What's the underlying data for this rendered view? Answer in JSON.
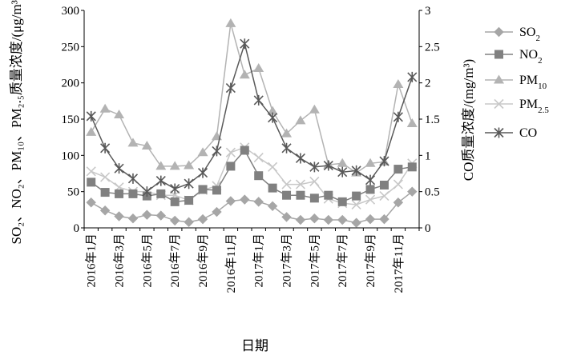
{
  "chart_data": {
    "type": "line",
    "title": "",
    "xlabel": "日期",
    "ylabel_left": "SO₂、NO₂、PM₁₀、PM₂.₅质量浓度/(μg/m³)",
    "ylabel_right": "CO质量浓度/(mg/m³)",
    "ylim_left": [
      0,
      300
    ],
    "ylim_right": [
      0,
      3
    ],
    "yticks_left": [
      "0",
      "50",
      "100",
      "150",
      "200",
      "250",
      "300"
    ],
    "yticks_right": [
      "0",
      "0.5",
      "1",
      "1.5",
      "2",
      "2.5",
      "3"
    ],
    "categories": [
      "2016-01",
      "2016-02",
      "2016-03",
      "2016-04",
      "2016-05",
      "2016-06",
      "2016-07",
      "2016-08",
      "2016-09",
      "2016-10",
      "2016-11",
      "2016-12",
      "2017-01",
      "2017-02",
      "2017-03",
      "2017-04",
      "2017-05",
      "2017-06",
      "2017-07",
      "2017-08",
      "2017-09",
      "2017-10",
      "2017-11",
      "2017-12"
    ],
    "xtick_labels": [
      "2016年1月",
      "2016年3月",
      "2016年5月",
      "2016年7月",
      "2016年9月",
      "2016年11月",
      "2017年1月",
      "2017年3月",
      "2017年5月",
      "2017年7月",
      "2017年9月",
      "2017年11月"
    ],
    "xtick_indices": [
      0,
      2,
      4,
      6,
      8,
      10,
      12,
      14,
      16,
      18,
      20,
      22
    ],
    "legend_position": "right",
    "series": [
      {
        "name": "SO2",
        "display_name": "SO",
        "subscript": "2",
        "axis": "left",
        "marker": "diamond",
        "color": "#a6a6a6",
        "values": [
          35,
          24,
          16,
          13,
          18,
          17,
          10,
          8,
          12,
          22,
          37,
          39,
          36,
          30,
          15,
          11,
          13,
          11,
          11,
          7,
          12,
          12,
          35,
          50
        ]
      },
      {
        "name": "NO2",
        "display_name": "NO",
        "subscript": "2",
        "axis": "left",
        "marker": "square",
        "color": "#808080",
        "values": [
          63,
          49,
          47,
          47,
          44,
          47,
          36,
          38,
          53,
          52,
          85,
          107,
          72,
          55,
          45,
          45,
          41,
          45,
          36,
          44,
          53,
          59,
          81,
          84
        ]
      },
      {
        "name": "PM10",
        "display_name": "PM",
        "subscript": "10",
        "axis": "left",
        "marker": "triangle",
        "color": "#b3b3b3",
        "values": [
          132,
          164,
          156,
          117,
          113,
          85,
          85,
          86,
          104,
          126,
          282,
          211,
          220,
          161,
          130,
          148,
          163,
          87,
          89,
          76,
          89,
          91,
          198,
          144
        ]
      },
      {
        "name": "PM2.5",
        "display_name": "PM",
        "subscript": "2.5",
        "axis": "left",
        "marker": "x",
        "color": "#c8c8c8",
        "values": [
          78,
          70,
          56,
          50,
          50,
          45,
          45,
          38,
          52,
          58,
          104,
          111,
          97,
          84,
          60,
          60,
          64,
          40,
          34,
          32,
          39,
          44,
          60,
          89
        ]
      },
      {
        "name": "CO",
        "display_name": "CO",
        "subscript": "",
        "axis": "right",
        "marker": "asterisk",
        "color": "#595959",
        "values": [
          1.54,
          1.1,
          0.82,
          0.68,
          0.5,
          0.65,
          0.54,
          0.61,
          0.76,
          1.06,
          1.93,
          2.54,
          1.76,
          1.52,
          1.1,
          0.96,
          0.84,
          0.86,
          0.77,
          0.79,
          0.66,
          0.92,
          1.53,
          2.08
        ]
      }
    ]
  }
}
